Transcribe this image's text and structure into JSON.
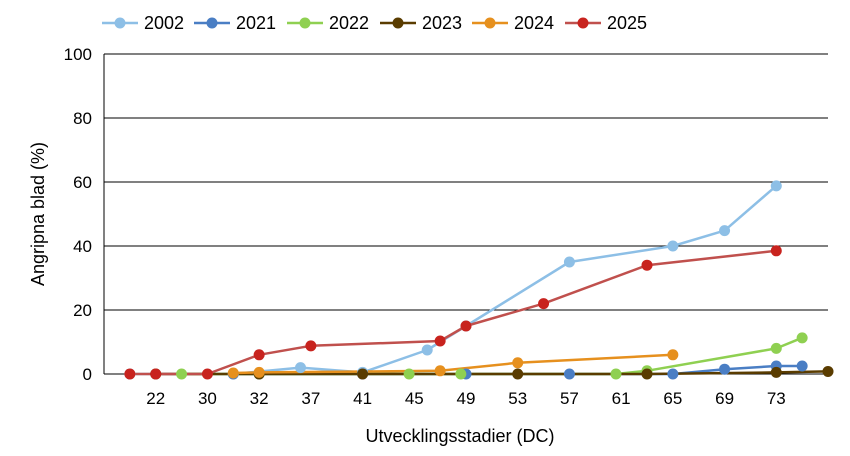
{
  "chart_data": {
    "type": "line",
    "title": "",
    "xlabel": "Utvecklingsstadier (DC)",
    "ylabel": "Angripna blad (%)",
    "ylim": [
      0,
      100
    ],
    "y_ticks": [
      "0",
      "20",
      "40",
      "60",
      "80",
      "100"
    ],
    "categories": [
      "22",
      "30",
      "32",
      "37",
      "41",
      "45",
      "49",
      "53",
      "57",
      "61",
      "65",
      "69",
      "73"
    ],
    "grid": true,
    "legend_position": "top",
    "series": [
      {
        "name": "2002",
        "color": "#8dbfe6",
        "points": [
          [
            -0.5,
            0
          ],
          [
            1.5,
            0
          ],
          [
            2.8,
            2
          ],
          [
            4.0,
            0.5
          ],
          [
            5.25,
            7.5
          ],
          [
            6.0,
            15
          ],
          [
            8.0,
            35
          ],
          [
            10.0,
            40
          ],
          [
            11.0,
            44.8
          ],
          [
            12.0,
            58.8
          ]
        ]
      },
      {
        "name": "2021",
        "color": "#4a7ec4",
        "points": [
          [
            1.5,
            0
          ],
          [
            2.0,
            0
          ],
          [
            4.0,
            0
          ],
          [
            6.0,
            0
          ],
          [
            8.0,
            0
          ],
          [
            10.0,
            0
          ],
          [
            11.0,
            1.5
          ],
          [
            12.0,
            2.5
          ],
          [
            12.5,
            2.5
          ]
        ]
      },
      {
        "name": "2022",
        "color": "#8fd051",
        "points": [
          [
            0.5,
            0
          ],
          [
            2.0,
            0
          ],
          [
            4.9,
            0
          ],
          [
            5.9,
            0
          ],
          [
            8.9,
            0
          ],
          [
            9.5,
            1
          ],
          [
            12.0,
            8
          ],
          [
            12.5,
            11.3
          ]
        ]
      },
      {
        "name": "2023",
        "color": "#5a3c00",
        "points": [
          [
            0,
            0
          ],
          [
            2.0,
            0
          ],
          [
            4.0,
            0
          ],
          [
            7.0,
            0
          ],
          [
            9.5,
            0
          ],
          [
            12.0,
            0.5
          ],
          [
            13.0,
            0.8
          ]
        ]
      },
      {
        "name": "2024",
        "color": "#e6901e",
        "points": [
          [
            1.5,
            0.3
          ],
          [
            2.0,
            0.5
          ],
          [
            5.5,
            1
          ],
          [
            7.0,
            3.5
          ],
          [
            10.0,
            6
          ]
        ]
      },
      {
        "name": "2025",
        "color": "#c0504d",
        "marker_color": "#c8231e",
        "points": [
          [
            -0.5,
            0
          ],
          [
            0,
            0
          ],
          [
            1.0,
            0
          ],
          [
            2.0,
            6
          ],
          [
            3.0,
            8.8
          ],
          [
            5.5,
            10.3
          ],
          [
            6.0,
            15
          ],
          [
            7.5,
            22
          ],
          [
            9.5,
            34
          ],
          [
            12.0,
            38.5
          ]
        ]
      }
    ]
  }
}
